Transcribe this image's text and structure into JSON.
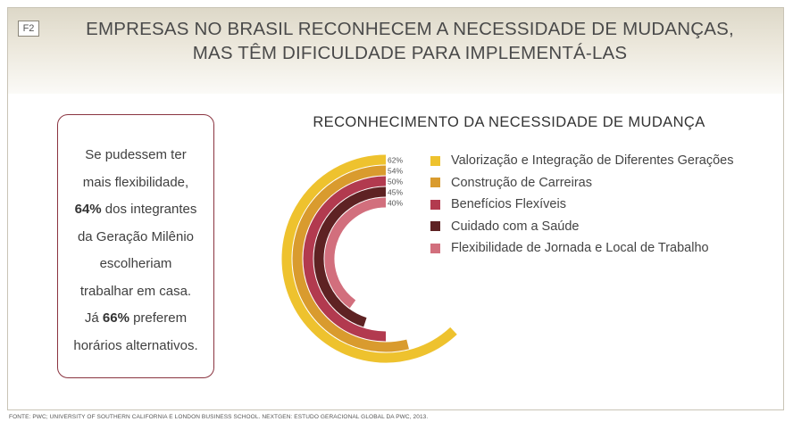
{
  "header": {
    "badge": "F2",
    "title_line1": "EMPRESAS NO BRASIL RECONHECEM A NECESSIDADE DE MUDANÇAS,",
    "title_line2": "MAS TÊM DIFICULDADE PARA IMPLEMENTÁ-LAS"
  },
  "callout": {
    "line1": "Se pudessem ter",
    "line2": "mais flexibilidade,",
    "line3_bold": "64%",
    "line3_rest": " dos integrantes",
    "line4": "da Geração Milênio",
    "line5": "escolheriam",
    "line6": "trabalhar em casa.",
    "line7_pre": "Já ",
    "line7_bold": "66%",
    "line7_rest": " preferem",
    "line8": "horários alternativos."
  },
  "chart_data": {
    "type": "radial-bar",
    "title": "RECONHECIMENTO DA NECESSIDADE DE MUDANÇA",
    "series": [
      {
        "name": "Valorização e Integração de Diferentes Gerações",
        "value": 62,
        "label": "62%",
        "color": "#eec22e"
      },
      {
        "name": "Construção de Carreiras",
        "value": 54,
        "label": "54%",
        "color": "#d99b2e"
      },
      {
        "name": "Benefícios Flexíveis",
        "value": 50,
        "label": "50%",
        "color": "#b23a4f"
      },
      {
        "name": "Cuidado com a Saúde",
        "value": 45,
        "label": "45%",
        "color": "#5e2223"
      },
      {
        "name": "Flexibilidade de Jornada e Local de Trabalho",
        "value": 40,
        "label": "40%",
        "color": "#d26f7d"
      }
    ]
  },
  "source": "FONTE: PWC; UNIVERSITY OF SOUTHERN CALIFORNIA E LONDON BUSINESS SCHOOL. NEXTGEN: ESTUDO GERACIONAL GLOBAL DA PWC, 2013."
}
